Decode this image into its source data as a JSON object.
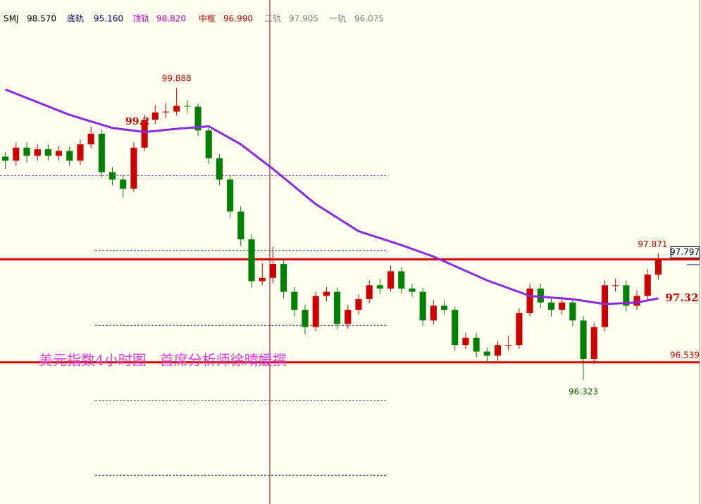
{
  "header": [
    {
      "name": "SMJ",
      "value": 98.57,
      "value_label": "98.570",
      "color": "#000000"
    },
    {
      "name": "底轨",
      "value": 95.16,
      "value_label": "95.160",
      "color": "#000080"
    },
    {
      "name": "顶轨",
      "value": 98.82,
      "value_label": "98.820",
      "color": "#d000d0"
    },
    {
      "name": "中枢",
      "value": 96.99,
      "value_label": "96.990",
      "color": "#cc0000"
    },
    {
      "name": "二轨",
      "value": 97.905,
      "value_label": "97.905",
      "color": "#808080"
    },
    {
      "name": "一轨",
      "value": 96.075,
      "value_label": "96.075",
      "color": "#808080"
    }
  ],
  "chart_data": {
    "type": "candlestick",
    "categories": [
      null,
      null,
      null,
      null,
      null,
      null,
      null,
      null,
      null,
      null,
      null,
      null,
      null,
      null,
      null,
      null,
      null,
      null,
      null,
      null,
      null,
      null,
      null,
      null,
      null,
      null,
      null,
      null,
      null,
      null,
      null,
      null,
      null,
      null,
      null,
      null,
      null,
      null,
      null,
      null,
      null,
      null,
      null,
      null,
      null,
      null,
      null,
      null,
      null,
      null,
      null,
      null,
      null,
      null,
      null,
      null,
      null,
      null,
      null,
      null,
      null,
      null
    ],
    "open": [
      99.05,
      99.0,
      99.16,
      99.06,
      99.14,
      99.06,
      99.12,
      99.0,
      99.2,
      99.33,
      98.86,
      98.77,
      98.66,
      99.16,
      99.5,
      99.59,
      99.6,
      99.67,
      99.66,
      99.37,
      99.03,
      98.77,
      98.38,
      98.04,
      97.53,
      97.57,
      97.74,
      97.4,
      97.18,
      96.97,
      97.35,
      97.4,
      97.01,
      97.18,
      97.31,
      97.48,
      97.44,
      97.65,
      97.44,
      97.4,
      97.05,
      97.23,
      97.18,
      96.75,
      96.84,
      96.67,
      96.62,
      96.75,
      96.75,
      97.14,
      97.44,
      97.27,
      97.18,
      97.27,
      97.05,
      96.58,
      96.97,
      97.48,
      97.48,
      97.23,
      97.35,
      97.61
    ],
    "high": [
      99.11,
      99.22,
      99.22,
      99.2,
      99.2,
      99.18,
      99.18,
      99.26,
      99.42,
      99.38,
      98.92,
      98.82,
      99.22,
      99.56,
      99.68,
      99.7,
      99.888,
      99.74,
      99.7,
      99.4,
      99.08,
      98.82,
      98.44,
      98.1,
      97.75,
      97.95,
      97.8,
      97.46,
      97.24,
      97.4,
      97.46,
      97.45,
      97.24,
      97.37,
      97.54,
      97.56,
      97.72,
      97.7,
      97.5,
      97.45,
      97.3,
      97.3,
      97.22,
      96.9,
      96.9,
      96.72,
      96.8,
      96.86,
      97.2,
      97.5,
      97.5,
      97.32,
      97.34,
      97.32,
      97.1,
      97.02,
      97.54,
      97.56,
      97.54,
      97.42,
      97.68,
      97.871
    ],
    "low": [
      98.9,
      98.94,
      98.98,
      99.0,
      99.0,
      99.0,
      98.94,
      98.95,
      99.15,
      98.8,
      98.7,
      98.55,
      98.62,
      99.12,
      99.45,
      99.52,
      99.55,
      99.58,
      99.3,
      98.96,
      98.7,
      98.3,
      97.96,
      97.45,
      97.48,
      97.5,
      97.32,
      97.1,
      96.88,
      96.92,
      97.28,
      96.94,
      96.95,
      97.12,
      97.26,
      97.38,
      97.4,
      97.38,
      97.34,
      96.98,
      97.0,
      97.12,
      96.68,
      96.7,
      96.6,
      96.54,
      96.56,
      96.68,
      96.7,
      97.1,
      97.2,
      97.1,
      97.12,
      96.98,
      96.323,
      96.52,
      96.92,
      97.4,
      97.16,
      97.18,
      97.3,
      97.55
    ],
    "close": [
      99.0,
      99.16,
      99.06,
      99.14,
      99.06,
      99.12,
      99.0,
      99.2,
      99.33,
      98.86,
      98.77,
      98.66,
      99.16,
      99.5,
      99.59,
      99.6,
      99.67,
      99.66,
      99.37,
      99.03,
      98.77,
      98.38,
      98.04,
      97.53,
      97.57,
      97.74,
      97.4,
      97.18,
      96.97,
      97.35,
      97.4,
      97.01,
      97.18,
      97.31,
      97.48,
      97.44,
      97.65,
      97.44,
      97.4,
      97.05,
      97.23,
      97.18,
      96.75,
      96.84,
      96.67,
      96.62,
      96.75,
      96.75,
      97.14,
      97.44,
      97.27,
      97.18,
      97.27,
      97.05,
      96.58,
      96.97,
      97.48,
      97.48,
      97.23,
      97.35,
      97.61,
      97.797
    ],
    "up_color": "#cc0000",
    "down_color": "#008000",
    "ylim": [
      94.81,
      100.962
    ],
    "ma": {
      "color": "#8a2be2",
      "x": [
        0,
        6,
        10,
        13,
        16,
        19,
        22,
        25,
        29,
        33,
        37,
        40,
        45,
        49,
        53,
        56,
        59,
        61
      ],
      "values": [
        99.87,
        99.56,
        99.4,
        99.35,
        99.39,
        99.42,
        99.2,
        98.9,
        98.47,
        98.14,
        97.97,
        97.83,
        97.54,
        97.35,
        97.31,
        97.25,
        97.27,
        97.32
      ]
    },
    "hlines": [
      97.797,
      96.539
    ],
    "hline_color": "#e00000",
    "annotations": {
      "partial_label": "99.2",
      "caption": "美元指数4小时图   首席分析师徐晴媛撰"
    }
  }
}
